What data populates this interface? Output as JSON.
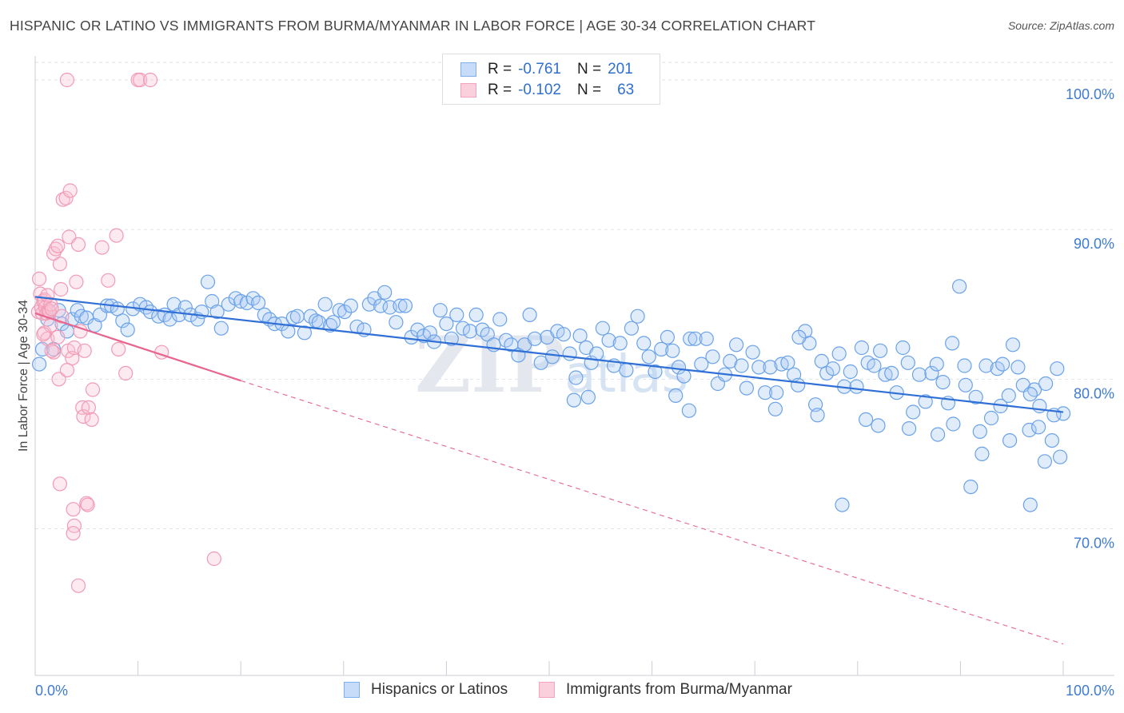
{
  "header": {
    "title": "HISPANIC OR LATINO VS IMMIGRANTS FROM BURMA/MYANMAR IN LABOR FORCE | AGE 30-34 CORRELATION CHART",
    "source": "Source: ZipAtlas.com"
  },
  "watermark": "ZIPatlas",
  "legend_top": {
    "rows": [
      {
        "r_label": "R =",
        "r_value": "-0.761",
        "n_label": "N =",
        "n_value": "201",
        "color": "#7fb0ee"
      },
      {
        "r_label": "R =",
        "r_value": "-0.102",
        "n_label": "N =",
        "n_value": "63",
        "color": "#f5a3bd"
      }
    ]
  },
  "legend_bottom": {
    "items": [
      {
        "label": "Hispanics or Latinos",
        "color": "#7fb0ee"
      },
      {
        "label": "Immigrants from Burma/Myanmar",
        "color": "#f5a3bd"
      }
    ]
  },
  "chart_data": {
    "type": "scatter",
    "title": "HISPANIC OR LATINO VS IMMIGRANTS FROM BURMA/MYANMAR IN LABOR FORCE | AGE 30-34 CORRELATION CHART",
    "ylabel": "In Labor Force | Age 30-34",
    "xlabel": "",
    "x_tick_labels": [
      "0.0%",
      "100.0%"
    ],
    "y_tick_labels": [
      "70.0%",
      "80.0%",
      "90.0%",
      "100.0%"
    ],
    "y_ticks": [
      70,
      80,
      90,
      100
    ],
    "xlim": [
      0,
      100
    ],
    "ylim": [
      60.2,
      101.6
    ],
    "grid": true,
    "legend_position": "top-center",
    "colors": {
      "blue": "#7fb0ee",
      "blue_line": "#2f6fd6",
      "pink": "#f5a3bd",
      "pink_line": "#e8658e"
    },
    "series": [
      {
        "name": "Hispanics or Latinos",
        "color": "#7fb0ee",
        "r": -0.761,
        "n": 201,
        "trend": {
          "x": [
            0,
            100
          ],
          "y": [
            85.5,
            77.8
          ]
        },
        "points": [
          [
            0.4,
            81.0
          ],
          [
            0.7,
            82.0
          ],
          [
            1.2,
            84.0
          ],
          [
            1.8,
            82.0
          ],
          [
            2.3,
            84.6
          ],
          [
            2.6,
            83.7
          ],
          [
            3.1,
            83.2
          ],
          [
            3.6,
            84.0
          ],
          [
            4.1,
            84.6
          ],
          [
            4.5,
            84.2
          ],
          [
            5.0,
            84.1
          ],
          [
            5.8,
            83.6
          ],
          [
            6.3,
            84.3
          ],
          [
            7.0,
            84.9
          ],
          [
            7.4,
            84.9
          ],
          [
            8.0,
            84.7
          ],
          [
            8.5,
            83.9
          ],
          [
            9.0,
            83.3
          ],
          [
            9.5,
            84.7
          ],
          [
            10.2,
            85.0
          ],
          [
            10.8,
            84.8
          ],
          [
            11.2,
            84.5
          ],
          [
            12.0,
            84.2
          ],
          [
            12.6,
            84.3
          ],
          [
            13.1,
            84.0
          ],
          [
            13.5,
            85.0
          ],
          [
            14.0,
            84.3
          ],
          [
            14.6,
            84.8
          ],
          [
            15.1,
            84.3
          ],
          [
            15.8,
            84.0
          ],
          [
            16.2,
            84.5
          ],
          [
            16.8,
            86.5
          ],
          [
            17.2,
            85.2
          ],
          [
            17.7,
            84.5
          ],
          [
            18.1,
            83.4
          ],
          [
            18.8,
            85.0
          ],
          [
            19.5,
            85.4
          ],
          [
            20.0,
            85.2
          ],
          [
            20.6,
            85.1
          ],
          [
            21.2,
            85.4
          ],
          [
            21.7,
            85.1
          ],
          [
            22.3,
            84.3
          ],
          [
            22.8,
            84.0
          ],
          [
            23.3,
            83.7
          ],
          [
            24.0,
            83.7
          ],
          [
            24.6,
            83.2
          ],
          [
            25.1,
            84.1
          ],
          [
            25.5,
            84.2
          ],
          [
            26.2,
            83.1
          ],
          [
            26.8,
            84.2
          ],
          [
            27.3,
            83.9
          ],
          [
            27.6,
            83.8
          ],
          [
            28.2,
            85.0
          ],
          [
            28.7,
            83.6
          ],
          [
            29.0,
            83.8
          ],
          [
            29.6,
            84.6
          ],
          [
            30.1,
            84.5
          ],
          [
            30.7,
            84.9
          ],
          [
            31.3,
            83.5
          ],
          [
            32.0,
            83.3
          ],
          [
            32.5,
            85.0
          ],
          [
            33.0,
            85.4
          ],
          [
            33.6,
            84.9
          ],
          [
            34.0,
            85.8
          ],
          [
            34.5,
            84.8
          ],
          [
            35.1,
            83.8
          ],
          [
            35.5,
            84.9
          ],
          [
            36.0,
            84.9
          ],
          [
            36.6,
            82.8
          ],
          [
            37.2,
            83.3
          ],
          [
            37.8,
            82.9
          ],
          [
            38.4,
            83.1
          ],
          [
            38.8,
            82.5
          ],
          [
            39.4,
            84.6
          ],
          [
            40.0,
            83.7
          ],
          [
            40.5,
            82.7
          ],
          [
            41.0,
            84.3
          ],
          [
            41.6,
            83.4
          ],
          [
            42.3,
            83.2
          ],
          [
            42.9,
            84.3
          ],
          [
            43.5,
            83.3
          ],
          [
            44.0,
            83.0
          ],
          [
            44.6,
            82.3
          ],
          [
            45.2,
            84.0
          ],
          [
            45.8,
            82.6
          ],
          [
            46.3,
            82.3
          ],
          [
            47.0,
            81.6
          ],
          [
            47.6,
            82.3
          ],
          [
            48.1,
            84.3
          ],
          [
            48.6,
            82.7
          ],
          [
            49.2,
            81.1
          ],
          [
            49.8,
            82.8
          ],
          [
            50.3,
            81.5
          ],
          [
            50.8,
            83.2
          ],
          [
            51.4,
            83.0
          ],
          [
            52.0,
            81.7
          ],
          [
            52.6,
            80.1
          ],
          [
            53.0,
            82.9
          ],
          [
            53.6,
            82.1
          ],
          [
            54.1,
            81.1
          ],
          [
            54.6,
            81.7
          ],
          [
            55.2,
            83.4
          ],
          [
            55.8,
            82.6
          ],
          [
            56.3,
            80.9
          ],
          [
            56.9,
            82.4
          ],
          [
            57.5,
            80.6
          ],
          [
            58.0,
            83.4
          ],
          [
            58.6,
            84.2
          ],
          [
            59.2,
            82.4
          ],
          [
            59.7,
            81.5
          ],
          [
            60.3,
            80.5
          ],
          [
            60.9,
            82.0
          ],
          [
            61.5,
            82.8
          ],
          [
            62.0,
            81.9
          ],
          [
            62.6,
            80.8
          ],
          [
            63.1,
            80.2
          ],
          [
            63.7,
            82.7
          ],
          [
            64.2,
            82.7
          ],
          [
            64.8,
            81.0
          ],
          [
            65.3,
            82.7
          ],
          [
            65.9,
            81.5
          ],
          [
            66.4,
            79.7
          ],
          [
            67.1,
            80.3
          ],
          [
            67.6,
            81.2
          ],
          [
            68.2,
            82.3
          ],
          [
            68.7,
            80.9
          ],
          [
            69.2,
            79.4
          ],
          [
            69.8,
            81.8
          ],
          [
            70.4,
            80.8
          ],
          [
            71.0,
            79.1
          ],
          [
            71.5,
            80.8
          ],
          [
            72.1,
            79.1
          ],
          [
            72.6,
            81.0
          ],
          [
            73.2,
            81.1
          ],
          [
            73.8,
            80.3
          ],
          [
            74.2,
            79.6
          ],
          [
            74.9,
            83.2
          ],
          [
            75.3,
            82.4
          ],
          [
            75.9,
            78.3
          ],
          [
            76.5,
            81.2
          ],
          [
            77.0,
            80.4
          ],
          [
            77.6,
            80.7
          ],
          [
            78.2,
            81.7
          ],
          [
            78.7,
            79.5
          ],
          [
            79.3,
            80.5
          ],
          [
            79.9,
            79.5
          ],
          [
            80.4,
            82.1
          ],
          [
            81.0,
            81.1
          ],
          [
            81.6,
            80.9
          ],
          [
            82.2,
            81.9
          ],
          [
            82.7,
            80.3
          ],
          [
            83.3,
            80.4
          ],
          [
            83.8,
            79.1
          ],
          [
            84.4,
            82.1
          ],
          [
            84.9,
            81.1
          ],
          [
            85.4,
            77.8
          ],
          [
            86.0,
            80.3
          ],
          [
            86.6,
            78.5
          ],
          [
            87.2,
            80.4
          ],
          [
            87.7,
            81.0
          ],
          [
            88.3,
            79.8
          ],
          [
            88.8,
            78.4
          ],
          [
            89.2,
            82.4
          ],
          [
            89.9,
            86.2
          ],
          [
            90.5,
            79.6
          ],
          [
            91.0,
            72.8
          ],
          [
            91.5,
            78.8
          ],
          [
            91.9,
            76.5
          ],
          [
            92.5,
            80.9
          ],
          [
            93.0,
            77.4
          ],
          [
            93.6,
            80.7
          ],
          [
            94.1,
            81.0
          ],
          [
            94.7,
            78.9
          ],
          [
            95.1,
            82.3
          ],
          [
            95.6,
            80.8
          ],
          [
            96.1,
            79.6
          ],
          [
            96.7,
            76.6
          ],
          [
            97.2,
            79.3
          ],
          [
            97.7,
            78.2
          ],
          [
            98.3,
            79.7
          ],
          [
            98.9,
            75.9
          ],
          [
            99.4,
            80.7
          ],
          [
            99.7,
            74.8
          ],
          [
            85.0,
            76.7
          ],
          [
            87.8,
            76.3
          ],
          [
            90.4,
            80.9
          ],
          [
            93.9,
            78.2
          ],
          [
            96.8,
            79.0
          ],
          [
            52.4,
            78.6
          ],
          [
            53.8,
            78.8
          ],
          [
            62.3,
            78.9
          ],
          [
            63.6,
            77.9
          ],
          [
            72.0,
            78.0
          ],
          [
            76.1,
            77.6
          ],
          [
            80.8,
            77.3
          ],
          [
            82.0,
            76.9
          ],
          [
            89.3,
            77.0
          ],
          [
            92.1,
            75.0
          ],
          [
            94.8,
            75.9
          ],
          [
            97.6,
            76.8
          ],
          [
            100.0,
            77.7
          ],
          [
            99.1,
            77.6
          ],
          [
            78.5,
            71.6
          ],
          [
            96.8,
            71.6
          ],
          [
            98.2,
            74.5
          ],
          [
            74.3,
            82.8
          ]
        ]
      },
      {
        "name": "Immigrants from Burma/Myanmar",
        "color": "#f5a3bd",
        "r": -0.102,
        "n": 63,
        "trend": {
          "x": [
            0,
            20
          ],
          "y": [
            84.4,
            79.9
          ]
        },
        "trend_extension": {
          "x": [
            20,
            100
          ],
          "y": [
            79.9,
            62.3
          ]
        },
        "points": [
          [
            0.3,
            84.5
          ],
          [
            0.4,
            86.7
          ],
          [
            0.5,
            85.7
          ],
          [
            0.6,
            84.8
          ],
          [
            0.7,
            84.4
          ],
          [
            0.8,
            85.2
          ],
          [
            0.9,
            85.3
          ],
          [
            1.0,
            84.8
          ],
          [
            1.1,
            84.4
          ],
          [
            1.2,
            85.6
          ],
          [
            1.3,
            84.6
          ],
          [
            1.4,
            84.5
          ],
          [
            1.5,
            85.0
          ],
          [
            1.6,
            84.7
          ],
          [
            0.9,
            83.1
          ],
          [
            1.2,
            82.7
          ],
          [
            1.5,
            83.6
          ],
          [
            1.8,
            81.8
          ],
          [
            2.2,
            82.8
          ],
          [
            2.6,
            84.2
          ],
          [
            0.8,
            83.0
          ],
          [
            1.6,
            81.9
          ],
          [
            1.8,
            88.4
          ],
          [
            2.0,
            88.7
          ],
          [
            2.2,
            88.9
          ],
          [
            2.4,
            87.7
          ],
          [
            2.5,
            86.0
          ],
          [
            2.7,
            92.0
          ],
          [
            3.0,
            92.1
          ],
          [
            3.4,
            92.6
          ],
          [
            3.3,
            89.5
          ],
          [
            3.2,
            81.9
          ],
          [
            3.6,
            81.4
          ],
          [
            3.8,
            82.1
          ],
          [
            4.0,
            86.5
          ],
          [
            4.2,
            89.0
          ],
          [
            4.4,
            83.2
          ],
          [
            4.6,
            78.1
          ],
          [
            4.7,
            77.5
          ],
          [
            4.8,
            81.9
          ],
          [
            5.0,
            71.7
          ],
          [
            5.1,
            71.6
          ],
          [
            5.2,
            78.1
          ],
          [
            5.5,
            77.3
          ],
          [
            5.6,
            79.3
          ],
          [
            3.1,
            100.0
          ],
          [
            10.0,
            100.0
          ],
          [
            10.2,
            100.0
          ],
          [
            11.2,
            100.0
          ],
          [
            2.4,
            73.0
          ],
          [
            3.7,
            71.3
          ],
          [
            3.8,
            70.2
          ],
          [
            3.7,
            69.7
          ],
          [
            4.2,
            66.2
          ],
          [
            2.3,
            80.0
          ],
          [
            3.1,
            80.6
          ],
          [
            6.5,
            88.8
          ],
          [
            7.1,
            86.6
          ],
          [
            7.9,
            89.6
          ],
          [
            8.1,
            82.0
          ],
          [
            8.8,
            80.4
          ],
          [
            12.3,
            81.8
          ],
          [
            17.4,
            68.0
          ]
        ]
      }
    ]
  }
}
